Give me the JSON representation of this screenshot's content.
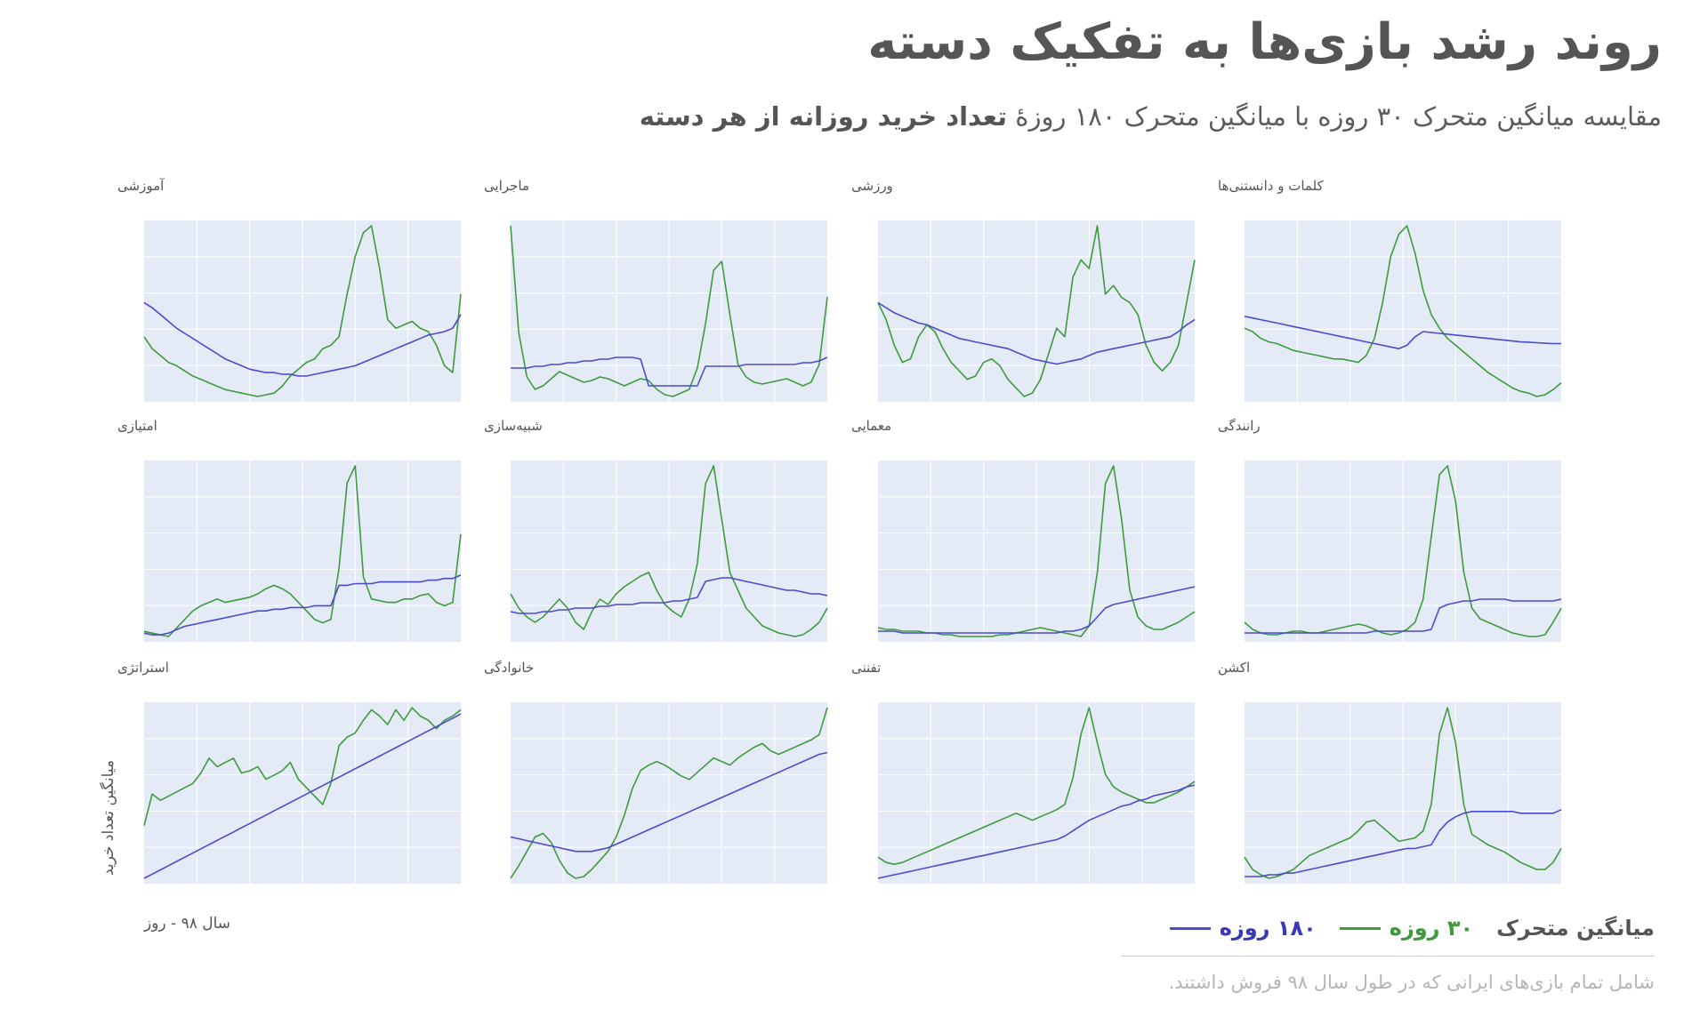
{
  "title": "روند رشد بازی‌ها به تفکیک دسته",
  "subtitle_normal": "مقایسه میانگین متحرک ۳۰ روزه با میانگین متحرک ۱۸۰ روزهٔ",
  "subtitle_bold": "تعداد خرید روزانه از هر دسته",
  "ylabel": "میانگین تعداد خرید",
  "xlabel": "سال ۹۸ - روز",
  "legend": {
    "title": "میانگین متحرک",
    "item_30": "۳۰ روزه",
    "item_180": "۱۸۰ روزه"
  },
  "footnote": "شامل تمام بازی‌های ایرانی که در طول سال ۹۸ فروش داشتند.",
  "colors": {
    "ma30": "#3d9b3d",
    "ma180": "#4a4ad0",
    "plot_bg": "#e5ebf6",
    "grid": "#ffffff"
  },
  "chart_data": [
    {
      "type": "line",
      "title": "کلمات و دانستنی‌ها",
      "series": [
        {
          "name": "۳۰ روزه",
          "values": [
            40,
            38,
            34,
            32,
            31,
            29,
            27,
            26,
            25,
            24,
            23,
            22,
            22,
            21,
            20,
            24,
            34,
            55,
            82,
            95,
            100,
            84,
            62,
            48,
            40,
            34,
            30,
            26,
            22,
            18,
            14,
            11,
            8,
            5,
            3,
            2,
            0,
            1,
            4,
            8
          ]
        },
        {
          "name": "۱۸۰ روزه",
          "values": [
            47,
            46,
            45,
            44,
            43,
            42,
            41,
            40,
            39,
            38,
            37,
            36,
            35,
            34,
            33,
            32,
            31,
            30,
            29,
            28,
            30,
            35,
            38,
            37.5,
            37,
            36.5,
            36,
            35.5,
            35,
            34.5,
            34,
            33.5,
            33,
            32.5,
            32,
            31.8,
            31.5,
            31.2,
            31,
            31
          ]
        }
      ]
    },
    {
      "type": "line",
      "title": "ورزشی",
      "series": [
        {
          "name": "۳۰ روزه",
          "values": [
            55,
            45,
            30,
            20,
            22,
            35,
            42,
            38,
            28,
            20,
            15,
            10,
            12,
            20,
            22,
            18,
            10,
            5,
            0,
            2,
            10,
            25,
            40,
            35,
            70,
            80,
            75,
            100,
            60,
            65,
            58,
            55,
            48,
            30,
            20,
            15,
            20,
            30,
            55,
            80
          ]
        },
        {
          "name": "۱۸۰ روزه",
          "values": [
            55,
            52,
            49,
            47,
            45,
            43,
            42,
            40,
            38,
            36,
            34,
            33,
            32,
            31,
            30,
            29,
            28,
            26,
            24,
            22,
            21,
            20,
            19,
            20,
            21,
            22,
            24,
            26,
            27,
            28,
            29,
            30,
            31,
            32,
            33,
            34,
            35,
            38,
            42,
            45
          ]
        }
      ]
    },
    {
      "type": "line",
      "title": "ماجرایی",
      "series": [
        {
          "name": "۳۰ روزه",
          "values": [
            100,
            40,
            15,
            8,
            10,
            14,
            18,
            16,
            14,
            12,
            13,
            15,
            14,
            12,
            10,
            12,
            14,
            13,
            8,
            5,
            4,
            6,
            8,
            20,
            45,
            75,
            80,
            50,
            22,
            15,
            12,
            11,
            12,
            13,
            14,
            12,
            10,
            12,
            22,
            60
          ]
        },
        {
          "name": "۱۸۰ روزه",
          "values": [
            20,
            20,
            20,
            21,
            21,
            22,
            22,
            23,
            23,
            24,
            24,
            25,
            25,
            26,
            26,
            26,
            25,
            10,
            10,
            10,
            10,
            10,
            10,
            10,
            21,
            21,
            21,
            21,
            21,
            22,
            22,
            22,
            22,
            22,
            22,
            22,
            23,
            23,
            24,
            26
          ]
        }
      ]
    },
    {
      "type": "line",
      "title": "آموزشی",
      "series": [
        {
          "name": "۳۰ روزه",
          "values": [
            35,
            28,
            24,
            20,
            18,
            15,
            12,
            10,
            8,
            6,
            4,
            3,
            2,
            1,
            0,
            1,
            2,
            6,
            12,
            16,
            20,
            22,
            28,
            30,
            35,
            60,
            82,
            96,
            100,
            75,
            45,
            40,
            42,
            44,
            40,
            38,
            30,
            18,
            14,
            60
          ]
        },
        {
          "name": "۱۸۰ روزه",
          "values": [
            55,
            52,
            48,
            44,
            40,
            37,
            34,
            31,
            28,
            25,
            22,
            20,
            18,
            16,
            15,
            14,
            14,
            13,
            13,
            12,
            12,
            13,
            14,
            15,
            16,
            17,
            18,
            20,
            22,
            24,
            26,
            28,
            30,
            32,
            34,
            36,
            37,
            38,
            40,
            48
          ]
        }
      ]
    },
    {
      "type": "line",
      "title": "رانندگی",
      "series": [
        {
          "name": "۳۰ روزه",
          "values": [
            12,
            8,
            6,
            5,
            5,
            6,
            7,
            7,
            6,
            6,
            7,
            8,
            9,
            10,
            11,
            10,
            8,
            6,
            5,
            6,
            8,
            12,
            25,
            60,
            95,
            100,
            80,
            40,
            20,
            14,
            12,
            10,
            8,
            6,
            5,
            4,
            4,
            5,
            12,
            20
          ]
        },
        {
          "name": "۱۸۰ روزه",
          "values": [
            6,
            6,
            6,
            6,
            6,
            6,
            6,
            6,
            6,
            6,
            6,
            6,
            6,
            6,
            6,
            6,
            7,
            7,
            7,
            7,
            7,
            7,
            7,
            8,
            20,
            22,
            23,
            24,
            24,
            25,
            25,
            25,
            25,
            24,
            24,
            24,
            24,
            24,
            24,
            25
          ]
        }
      ]
    },
    {
      "type": "line",
      "title": "معمایی",
      "series": [
        {
          "name": "۳۰ روزه",
          "values": [
            9,
            8,
            8,
            7,
            7,
            7,
            6,
            6,
            5,
            5,
            4,
            4,
            4,
            4,
            4,
            5,
            5,
            6,
            7,
            8,
            9,
            8,
            7,
            6,
            5,
            4,
            10,
            40,
            90,
            100,
            70,
            30,
            15,
            10,
            8,
            8,
            10,
            12,
            15,
            18
          ]
        },
        {
          "name": "۱۸۰ روزه",
          "values": [
            7,
            7,
            7,
            6,
            6,
            6,
            6,
            6,
            6,
            6,
            6,
            6,
            6,
            6,
            6,
            6,
            6,
            6,
            6,
            6,
            6,
            6,
            6,
            7,
            7,
            8,
            10,
            15,
            20,
            22,
            23,
            24,
            25,
            26,
            27,
            28,
            29,
            30,
            31,
            32
          ]
        }
      ]
    },
    {
      "type": "line",
      "title": "شبیه‌سازی",
      "series": [
        {
          "name": "۳۰ روزه",
          "values": [
            28,
            20,
            15,
            12,
            15,
            20,
            25,
            20,
            12,
            8,
            18,
            25,
            22,
            28,
            32,
            35,
            38,
            40,
            30,
            22,
            18,
            15,
            25,
            45,
            90,
            100,
            70,
            40,
            30,
            20,
            15,
            10,
            8,
            6,
            5,
            4,
            5,
            8,
            12,
            20
          ]
        },
        {
          "name": "۱۸۰ روزه",
          "values": [
            18,
            17,
            17,
            17,
            18,
            18,
            19,
            19,
            20,
            20,
            20,
            21,
            21,
            22,
            22,
            22,
            23,
            23,
            23,
            23,
            24,
            24,
            25,
            26,
            35,
            36,
            37,
            37,
            36,
            35,
            34,
            33,
            32,
            31,
            30,
            30,
            29,
            28,
            28,
            27
          ]
        }
      ]
    },
    {
      "type": "line",
      "title": "امتیازی",
      "series": [
        {
          "name": "۳۰ روزه",
          "values": [
            3,
            2,
            1,
            0,
            5,
            10,
            15,
            18,
            20,
            22,
            20,
            21,
            22,
            23,
            25,
            28,
            30,
            28,
            25,
            20,
            15,
            10,
            8,
            10,
            40,
            90,
            100,
            35,
            22,
            21,
            20,
            20,
            22,
            22,
            24,
            25,
            20,
            18,
            20,
            60
          ]
        },
        {
          "name": "۱۸۰ روزه",
          "values": [
            2,
            1,
            1,
            2,
            4,
            6,
            7,
            8,
            9,
            10,
            11,
            12,
            13,
            14,
            15,
            15,
            16,
            16,
            17,
            17,
            17,
            18,
            18,
            18,
            30,
            30,
            31,
            31,
            31,
            32,
            32,
            32,
            32,
            32,
            32,
            33,
            33,
            34,
            34,
            36
          ]
        }
      ]
    },
    {
      "type": "line",
      "title": "اکشن",
      "series": [
        {
          "name": "۳۰ روزه",
          "values": [
            15,
            8,
            5,
            3,
            4,
            6,
            8,
            12,
            16,
            18,
            20,
            22,
            24,
            26,
            30,
            35,
            36,
            32,
            28,
            24,
            25,
            26,
            30,
            45,
            85,
            100,
            80,
            45,
            28,
            25,
            22,
            20,
            18,
            15,
            12,
            10,
            8,
            8,
            12,
            20
          ]
        },
        {
          "name": "۱۸۰ روزه",
          "values": [
            4,
            4,
            4,
            5,
            5,
            6,
            6,
            7,
            8,
            9,
            10,
            11,
            12,
            13,
            14,
            15,
            16,
            17,
            18,
            19,
            20,
            20,
            21,
            22,
            30,
            35,
            38,
            40,
            41,
            41,
            41,
            41,
            41,
            41,
            40,
            40,
            40,
            40,
            40,
            42
          ]
        }
      ]
    },
    {
      "type": "line",
      "title": "تفننی",
      "series": [
        {
          "name": "۳۰ روزه",
          "values": [
            15,
            12,
            11,
            12,
            14,
            16,
            18,
            20,
            22,
            24,
            26,
            28,
            30,
            32,
            34,
            36,
            38,
            40,
            38,
            36,
            38,
            40,
            42,
            45,
            60,
            85,
            100,
            80,
            62,
            55,
            52,
            50,
            48,
            46,
            46,
            48,
            50,
            52,
            55,
            58
          ]
        },
        {
          "name": "۱۸۰ روزه",
          "values": [
            3,
            4,
            5,
            6,
            7,
            8,
            9,
            10,
            11,
            12,
            13,
            14,
            15,
            16,
            17,
            18,
            19,
            20,
            21,
            22,
            23,
            24,
            25,
            27,
            30,
            33,
            36,
            38,
            40,
            42,
            44,
            45,
            47,
            48,
            50,
            51,
            52,
            53,
            55,
            56
          ]
        }
      ]
    },
    {
      "type": "line",
      "title": "خانوادگی",
      "series": [
        {
          "name": "۳۰ روزه",
          "values": [
            5,
            12,
            20,
            28,
            30,
            25,
            15,
            8,
            5,
            6,
            10,
            15,
            20,
            28,
            40,
            55,
            65,
            68,
            70,
            68,
            65,
            62,
            60,
            64,
            68,
            72,
            70,
            68,
            72,
            75,
            78,
            80,
            76,
            74,
            76,
            78,
            80,
            82,
            85,
            100
          ]
        },
        {
          "name": "۱۸۰ روزه",
          "values": [
            28,
            27,
            26,
            25,
            24,
            23,
            22,
            21,
            20,
            20,
            20,
            21,
            22,
            24,
            26,
            28,
            30,
            32,
            34,
            36,
            38,
            40,
            42,
            44,
            46,
            48,
            50,
            52,
            54,
            56,
            58,
            60,
            62,
            64,
            66,
            68,
            70,
            72,
            74,
            75
          ]
        }
      ]
    },
    {
      "type": "line",
      "title": "استراتژی",
      "series": [
        {
          "name": "۳۰ روزه",
          "values": [
            30,
            45,
            42,
            44,
            46,
            48,
            50,
            55,
            62,
            58,
            60,
            62,
            55,
            56,
            58,
            52,
            54,
            56,
            60,
            52,
            48,
            44,
            40,
            50,
            68,
            72,
            74,
            80,
            85,
            82,
            78,
            85,
            80,
            86,
            82,
            80,
            76,
            80,
            82,
            85
          ]
        },
        {
          "name": "۱۸۰ روزه",
          "values": [
            5,
            7,
            9,
            11,
            13,
            15,
            17,
            19,
            21,
            23,
            25,
            27,
            29,
            31,
            33,
            35,
            37,
            39,
            41,
            43,
            45,
            47,
            49,
            51,
            53,
            55,
            57,
            59,
            61,
            63,
            65,
            67,
            69,
            71,
            73,
            75,
            77,
            79,
            81,
            83
          ]
        }
      ]
    }
  ]
}
